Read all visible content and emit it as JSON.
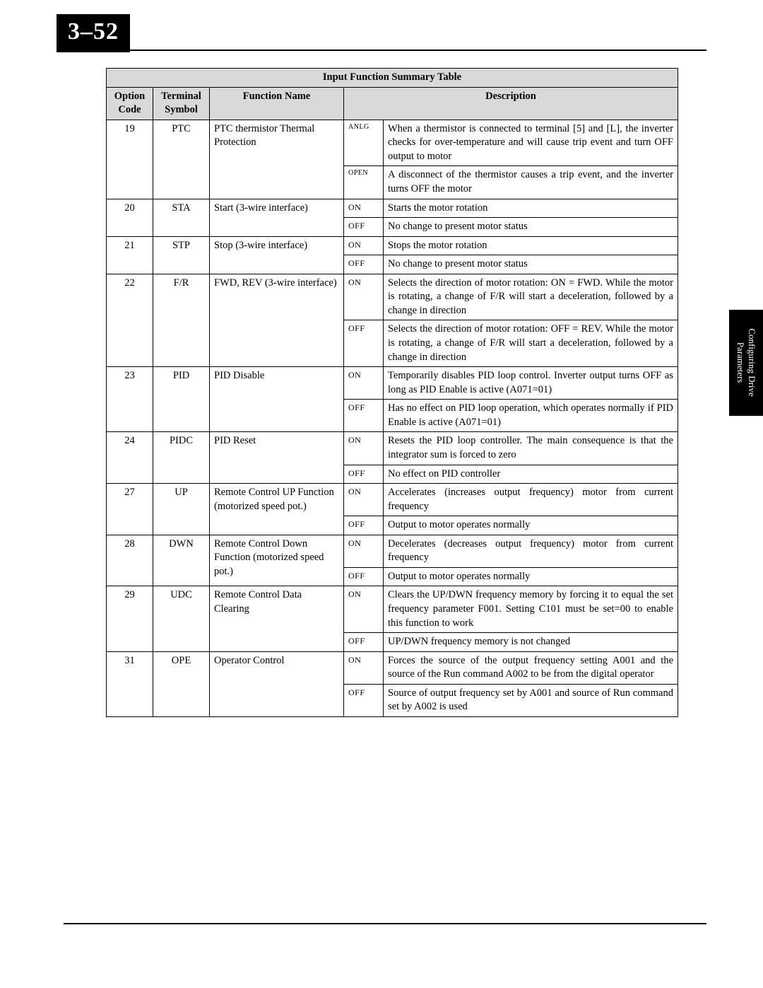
{
  "page_number": "3–52",
  "side_tab_line1": "Configuring Drive",
  "side_tab_line2": "Parameters",
  "table": {
    "title": "Input Function Summary Table",
    "headers": {
      "code": "Option Code",
      "symbol": "Terminal Symbol",
      "func": "Function Name",
      "desc": "Description"
    },
    "rows": [
      {
        "code": "19",
        "symbol": "PTC",
        "func": "PTC thermistor Thermal Protection",
        "states": [
          {
            "state": "ANLG",
            "small": true,
            "desc": "When a thermistor is connected to terminal [5] and [L], the inverter checks for over-temperature and will cause trip event and turn OFF output to motor"
          },
          {
            "state": "OPEN",
            "small": true,
            "desc": "A disconnect of the thermistor causes a trip event, and the inverter turns OFF the motor"
          }
        ]
      },
      {
        "code": "20",
        "symbol": "STA",
        "func": "Start (3-wire interface)",
        "states": [
          {
            "state": "ON",
            "desc": "Starts the motor rotation"
          },
          {
            "state": "OFF",
            "desc": "No change to present motor status"
          }
        ]
      },
      {
        "code": "21",
        "symbol": "STP",
        "func": "Stop (3-wire interface)",
        "states": [
          {
            "state": "ON",
            "desc": "Stops the motor rotation"
          },
          {
            "state": "OFF",
            "desc": "No change to present motor status"
          }
        ]
      },
      {
        "code": "22",
        "symbol": "F/R",
        "func": "FWD, REV (3-wire interface)",
        "states": [
          {
            "state": "ON",
            "desc": "Selects the direction of motor rotation: ON = FWD. While the motor is rotating, a change of F/R will start a deceleration, followed by a change in direction"
          },
          {
            "state": "OFF",
            "desc": "Selects the direction of motor rotation: OFF = REV. While the motor is rotating, a change of F/R will start a deceleration, followed by a change in direction"
          }
        ]
      },
      {
        "code": "23",
        "symbol": "PID",
        "func": "PID Disable",
        "states": [
          {
            "state": "ON",
            "desc": "Temporarily disables PID loop control. Inverter output turns OFF as long as PID Enable is active (A071=01)"
          },
          {
            "state": "OFF",
            "desc": "Has no effect on PID loop operation, which operates normally if PID Enable is active (A071=01)"
          }
        ]
      },
      {
        "code": "24",
        "symbol": "PIDC",
        "func": "PID Reset",
        "states": [
          {
            "state": "ON",
            "desc": "Resets the PID loop controller. The main consequence is that the integrator sum is forced to zero"
          },
          {
            "state": "OFF",
            "desc": "No effect on PID controller"
          }
        ]
      },
      {
        "code": "27",
        "symbol": "UP",
        "func": "Remote Control UP Function (motorized speed pot.)",
        "states": [
          {
            "state": "ON",
            "desc": "Accelerates (increases output frequency) motor from current frequency"
          },
          {
            "state": "OFF",
            "desc": "Output to motor operates normally"
          }
        ]
      },
      {
        "code": "28",
        "symbol": "DWN",
        "func": "Remote Control Down Function (motorized speed pot.)",
        "states": [
          {
            "state": "ON",
            "desc": "Decelerates (decreases output frequency) motor from current frequency"
          },
          {
            "state": "OFF",
            "desc": "Output to motor operates normally"
          }
        ]
      },
      {
        "code": "29",
        "symbol": "UDC",
        "func": "Remote Control Data Clearing",
        "states": [
          {
            "state": "ON",
            "desc": "Clears the UP/DWN frequency memory by forcing it to equal the set frequency parameter F001. Setting C101 must be set=00 to enable this function to work"
          },
          {
            "state": "OFF",
            "desc": "UP/DWN frequency memory is not changed"
          }
        ]
      },
      {
        "code": "31",
        "symbol": "OPE",
        "func": "Operator Control",
        "states": [
          {
            "state": "ON",
            "desc": "Forces the source of the output frequency setting A001 and the source of the Run command A002 to be from the digital operator"
          },
          {
            "state": "OFF",
            "desc": "Source of output frequency set by A001 and source of Run command set by A002 is used"
          }
        ]
      }
    ]
  }
}
